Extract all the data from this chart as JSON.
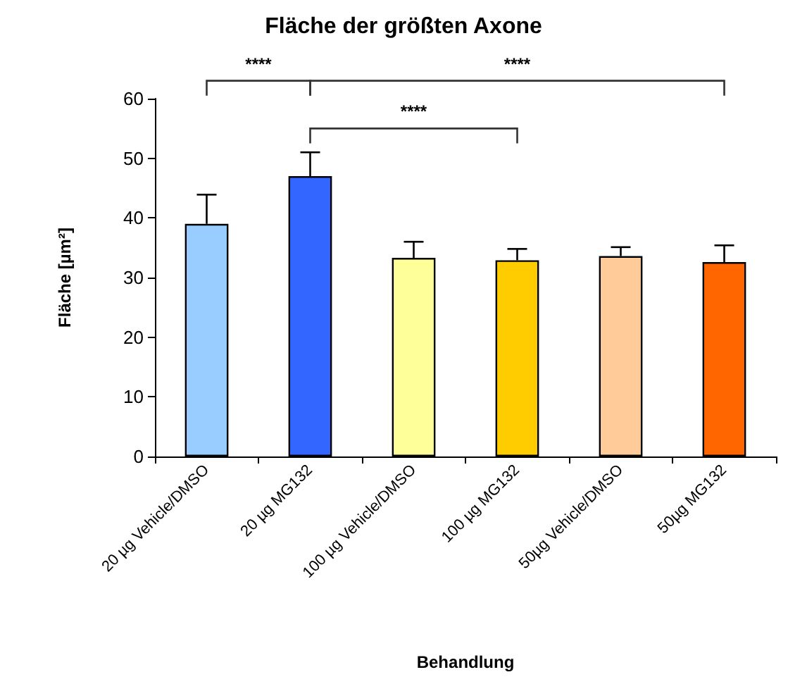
{
  "chart_data": {
    "type": "bar",
    "title": "Fläche der größten Axone",
    "xlabel": "Behandlung",
    "ylabel": "Fläche [µm²]",
    "categories": [
      "20 µg Vehicle/DMSO",
      "20 µg MG132",
      "100 µg Vehicle/DMSO",
      "100 µg MG132",
      "50µg Vehicle/DMSO",
      "50µg MG132"
    ],
    "values": [
      39,
      47,
      33.3,
      32.9,
      33.6,
      32.6
    ],
    "errors": [
      4.9,
      4,
      2.7,
      1.9,
      1.5,
      2.8
    ],
    "colors": [
      "#99ccff",
      "#3366ff",
      "#ffff99",
      "#ffcc00",
      "#ffcc99",
      "#ff6600"
    ],
    "ylim": [
      0,
      60
    ],
    "yticks": [
      0,
      10,
      20,
      30,
      40,
      50,
      60
    ],
    "grid": false,
    "annotations": [
      "****",
      "****",
      "****"
    ]
  }
}
